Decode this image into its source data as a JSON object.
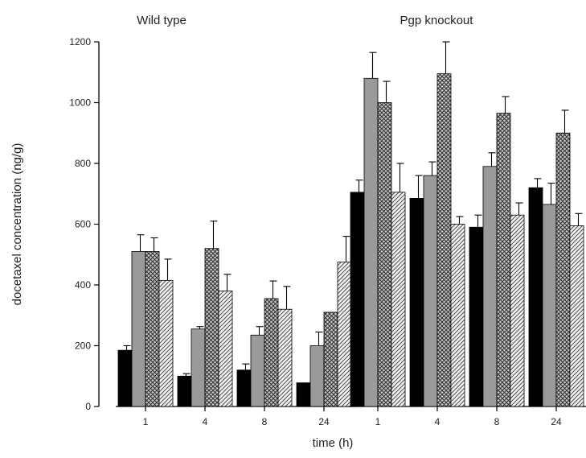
{
  "chart_data": {
    "type": "bar",
    "ylabel": "docetaxel concentration (ng/g)",
    "xlabel": "time (h)",
    "ylim": [
      0,
      1200
    ],
    "yticks": [
      "0",
      "200",
      "400",
      "600",
      "800",
      "1000",
      "1200"
    ],
    "grid": false,
    "legend": "none",
    "panels": [
      {
        "title": "Wild type",
        "categories": [
          "1",
          "4",
          "8",
          "24"
        ],
        "series": [
          {
            "values": [
              185,
              100,
              120,
              78
            ],
            "errors": [
              15,
              8,
              20,
              0
            ],
            "fill": "black"
          },
          {
            "values": [
              510,
              255,
              235,
              200
            ],
            "errors": [
              55,
              8,
              28,
              45
            ],
            "fill": "gray"
          },
          {
            "values": [
              510,
              520,
              355,
              310
            ],
            "errors": [
              45,
              90,
              58,
              0
            ],
            "fill": "crosshatch"
          },
          {
            "values": [
              415,
              380,
              320,
              475
            ],
            "errors": [
              70,
              55,
              75,
              85
            ],
            "fill": "diagonal"
          }
        ]
      },
      {
        "title": "Pgp knockout",
        "categories": [
          "1",
          "4",
          "8",
          "24"
        ],
        "series": [
          {
            "values": [
              705,
              685,
              590,
              720
            ],
            "errors": [
              40,
              75,
              40,
              30
            ],
            "fill": "black"
          },
          {
            "values": [
              1080,
              760,
              790,
              665
            ],
            "errors": [
              85,
              45,
              45,
              70
            ],
            "fill": "gray"
          },
          {
            "values": [
              1000,
              1095,
              965,
              900
            ],
            "errors": [
              70,
              105,
              55,
              75
            ],
            "fill": "crosshatch"
          },
          {
            "values": [
              705,
              600,
              630,
              595
            ],
            "errors": [
              95,
              25,
              40,
              40
            ],
            "fill": "diagonal"
          }
        ]
      }
    ]
  }
}
